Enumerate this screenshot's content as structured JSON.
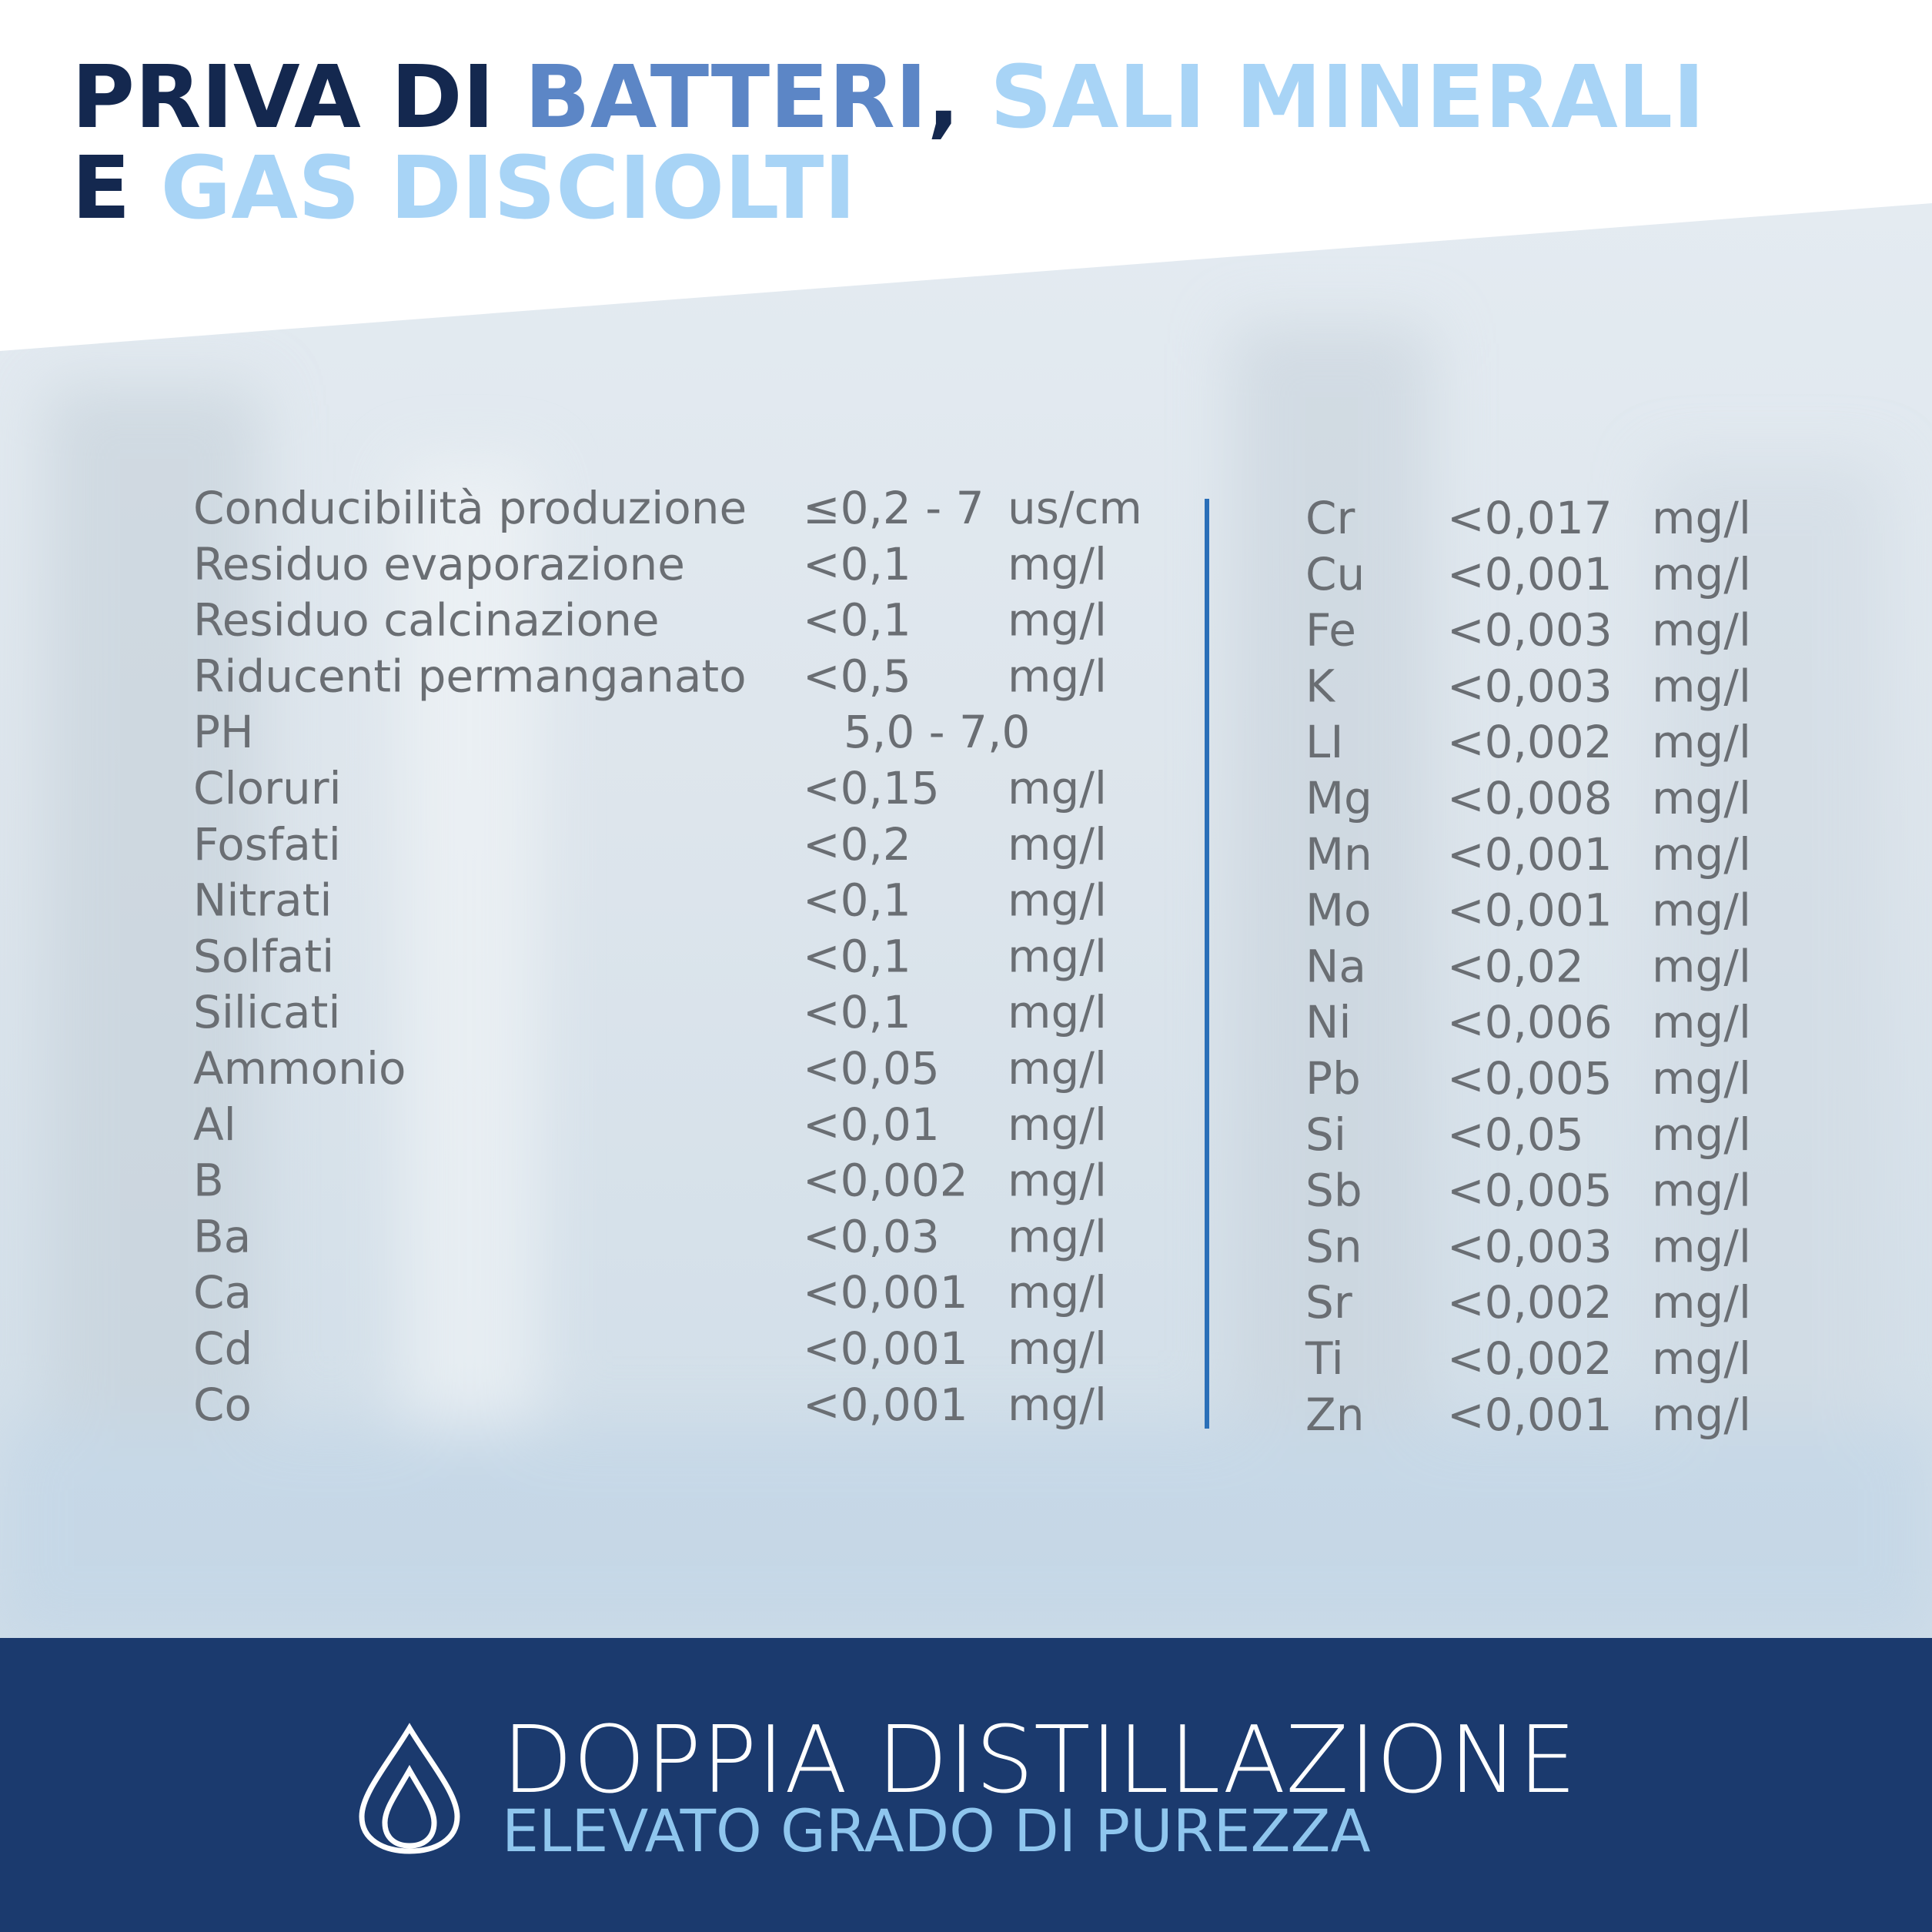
{
  "header": {
    "title": {
      "line1": [
        "PRIVA DI ",
        "BATTERI",
        ", ",
        "SALI MINERALI"
      ],
      "line2": [
        "E ",
        "GAS DISCIOLTI"
      ]
    }
  },
  "table_left": {
    "rows": [
      [
        "Conducibilità produzione",
        "≤0,2 - 7",
        "us/cm"
      ],
      [
        "Residuo evaporazione",
        "<0,1",
        "mg/l"
      ],
      [
        "Residuo calcinazione",
        "<0,1",
        "mg/l"
      ],
      [
        "Riducenti permanganato",
        "<0,5",
        "mg/l"
      ],
      [
        "PH",
        "5,0 - 7,0"
      ],
      [
        "Cloruri",
        "<0,15",
        "mg/l"
      ],
      [
        "Fosfati",
        "<0,2",
        "mg/l"
      ],
      [
        "Nitrati",
        "<0,1",
        "mg/l"
      ],
      [
        "Solfati",
        "<0,1",
        "mg/l"
      ],
      [
        "Silicati",
        "<0,1",
        "mg/l"
      ],
      [
        "Ammonio",
        "<0,05",
        "mg/l"
      ],
      [
        "Al",
        "<0,01",
        "mg/l"
      ],
      [
        "B",
        "<0,002",
        "mg/l"
      ],
      [
        "Ba",
        "<0,03",
        "mg/l"
      ],
      [
        "Ca",
        "<0,001",
        "mg/l"
      ],
      [
        "Cd",
        "<0,001",
        "mg/l"
      ],
      [
        "Co",
        "<0,001",
        "mg/l"
      ]
    ]
  },
  "table_right": {
    "rows": [
      [
        "Cr",
        "<0,017",
        "mg/l"
      ],
      [
        "Cu",
        "<0,001",
        "mg/l"
      ],
      [
        "Fe",
        "<0,003",
        "mg/l"
      ],
      [
        "K",
        "<0,003",
        "mg/l"
      ],
      [
        "LI",
        "<0,002",
        "mg/l"
      ],
      [
        "Mg",
        "<0,008",
        "mg/l"
      ],
      [
        "Mn",
        "<0,001",
        "mg/l"
      ],
      [
        "Mo",
        "<0,001",
        "mg/l"
      ],
      [
        "Na",
        "<0,02",
        "mg/l"
      ],
      [
        "Ni",
        "<0,006",
        "mg/l"
      ],
      [
        "Pb",
        "<0,005",
        "mg/l"
      ],
      [
        "Si",
        "<0,05",
        "mg/l"
      ],
      [
        "Sb",
        "<0,005",
        "mg/l"
      ],
      [
        "Sn",
        "<0,003",
        "mg/l"
      ],
      [
        "Sr",
        "<0,002",
        "mg/l"
      ],
      [
        "Ti",
        "<0,002",
        "mg/l"
      ],
      [
        "Zn",
        "<0,001",
        "mg/l"
      ]
    ]
  },
  "footer": {
    "title": "DOPPIA DISTILLAZIONE",
    "subtitle": "ELEVATO GRADO DI PUREZZA"
  }
}
